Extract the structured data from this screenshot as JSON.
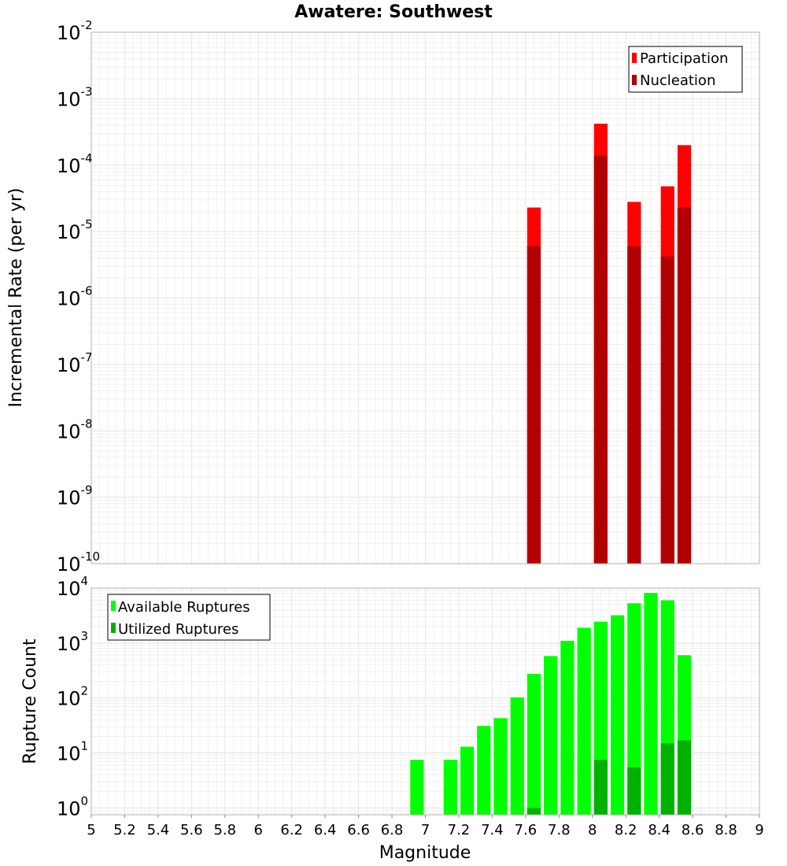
{
  "chart_data": [
    {
      "type": "bar",
      "title": "Awatere: Southwest",
      "ylabel": "Incremental Rate (per yr)",
      "xlabel": "",
      "yscale": "log",
      "ylim": [
        1e-10,
        0.01
      ],
      "xlim": [
        5,
        9
      ],
      "ytick_exponents": [
        -2,
        -3,
        -4,
        -5,
        -6,
        -7,
        -8,
        -9,
        -10
      ],
      "bar_width": 0.1,
      "legend": {
        "position": "top-right"
      },
      "series": [
        {
          "name": "Participation",
          "color": "#ff0000",
          "points": [
            [
              7.65,
              2.3e-05
            ],
            [
              8.05,
              0.00042
            ],
            [
              8.25,
              2.8e-05
            ],
            [
              8.45,
              4.8e-05
            ],
            [
              8.55,
              0.0002
            ]
          ]
        },
        {
          "name": "Nucleation",
          "color": "#b20000",
          "points": [
            [
              7.65,
              6e-06
            ],
            [
              8.05,
              0.00014
            ],
            [
              8.25,
              6e-06
            ],
            [
              8.45,
              4.2e-06
            ],
            [
              8.55,
              2.3e-05
            ]
          ]
        }
      ],
      "grid": true
    },
    {
      "type": "bar",
      "title": "",
      "ylabel": "Rupture Count",
      "xlabel": "Magnitude",
      "yscale": "log",
      "ylim": [
        0.75,
        10000
      ],
      "xlim": [
        5,
        9
      ],
      "ytick_exponents": [
        4,
        3,
        2,
        1,
        0
      ],
      "xticks": [
        "5",
        "5.2",
        "5.4",
        "5.6",
        "5.8",
        "6",
        "6.2",
        "6.4",
        "6.6",
        "6.8",
        "7",
        "7.2",
        "7.4",
        "7.6",
        "7.8",
        "8",
        "8.2",
        "8.4",
        "8.6",
        "8.8",
        "9"
      ],
      "bar_width": 0.1,
      "legend": {
        "position": "top-left"
      },
      "series": [
        {
          "name": "Available Ruptures",
          "color": "#00ff00",
          "points": [
            [
              6.95,
              7.5
            ],
            [
              7.15,
              7.5
            ],
            [
              7.25,
              13
            ],
            [
              7.35,
              31
            ],
            [
              7.45,
              43
            ],
            [
              7.55,
              103
            ],
            [
              7.65,
              275
            ],
            [
              7.75,
              580
            ],
            [
              7.85,
              1100
            ],
            [
              7.95,
              1900
            ],
            [
              8.05,
              2450
            ],
            [
              8.15,
              3200
            ],
            [
              8.25,
              5300
            ],
            [
              8.35,
              8200
            ],
            [
              8.45,
              6000
            ],
            [
              8.55,
              600
            ]
          ]
        },
        {
          "name": "Utilized Ruptures",
          "color": "#00b200",
          "points": [
            [
              7.65,
              1
            ],
            [
              8.05,
              7.5
            ],
            [
              8.25,
              5.5
            ],
            [
              8.45,
              15
            ],
            [
              8.55,
              17
            ]
          ]
        }
      ],
      "grid": true
    }
  ]
}
